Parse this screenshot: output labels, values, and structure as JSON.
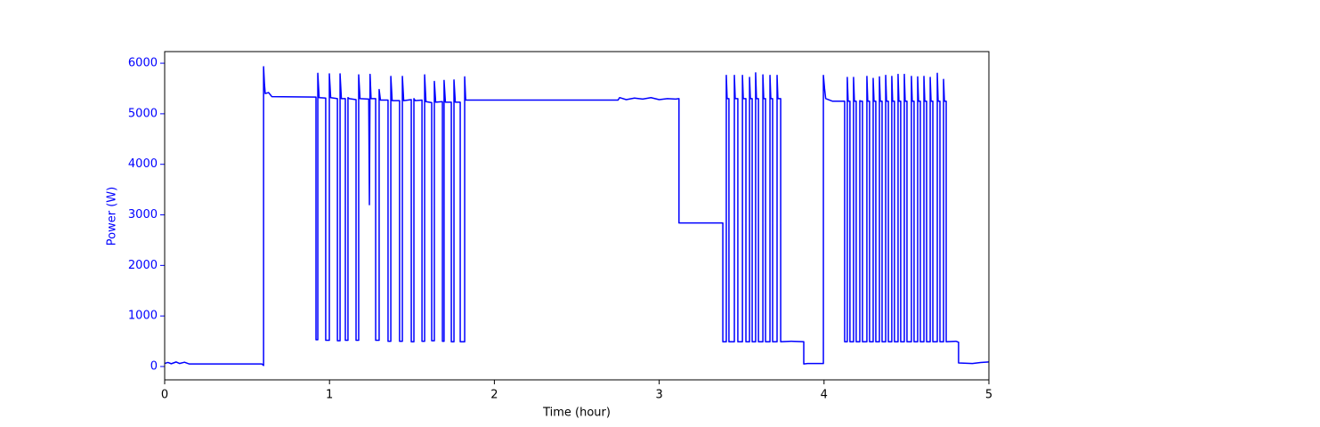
{
  "chart_data": {
    "type": "line",
    "xlabel": "Time (hour)",
    "ylabel": "Power (W)",
    "color": "#0000ff",
    "x": [
      0,
      0.02,
      0.04,
      0.07,
      0.09,
      0.12,
      0.15,
      0.59,
      0.6,
      0.6,
      0.605,
      0.61,
      0.63,
      0.65,
      0.918,
      0.918,
      0.929,
      0.929,
      0.937,
      0.977,
      0.977,
      0.999,
      0.999,
      1.007,
      1.048,
      1.048,
      1.064,
      1.064,
      1.072,
      1.096,
      1.096,
      1.112,
      1.112,
      1.12,
      1.161,
      1.161,
      1.177,
      1.177,
      1.185,
      1.238,
      1.242,
      1.246,
      1.252,
      1.28,
      1.28,
      1.301,
      1.301,
      1.309,
      1.355,
      1.355,
      1.372,
      1.372,
      1.38,
      1.425,
      1.425,
      1.442,
      1.442,
      1.45,
      1.496,
      1.496,
      1.512,
      1.512,
      1.52,
      1.561,
      1.561,
      1.577,
      1.577,
      1.585,
      1.62,
      1.62,
      1.636,
      1.636,
      1.644,
      1.685,
      1.685,
      1.695,
      1.695,
      1.703,
      1.739,
      1.739,
      1.755,
      1.755,
      1.763,
      1.793,
      1.793,
      1.82,
      1.82,
      1.826,
      2.75,
      2.76,
      2.8,
      2.85,
      2.9,
      2.95,
      3.0,
      3.05,
      3.1,
      3.12,
      3.12,
      3.386,
      3.386,
      3.407,
      3.407,
      3.412,
      3.423,
      3.423,
      3.456,
      3.456,
      3.461,
      3.477,
      3.477,
      3.505,
      3.505,
      3.51,
      3.526,
      3.526,
      3.548,
      3.548,
      3.553,
      3.564,
      3.564,
      3.585,
      3.585,
      3.59,
      3.602,
      3.602,
      3.629,
      3.629,
      3.634,
      3.645,
      3.645,
      3.672,
      3.672,
      3.677,
      3.688,
      3.688,
      3.715,
      3.715,
      3.72,
      3.737,
      3.737,
      3.8,
      3.877,
      3.877,
      3.9,
      3.996,
      3.996,
      4.003,
      4.01,
      4.05,
      4.125,
      4.125,
      4.141,
      4.141,
      4.146,
      4.157,
      4.157,
      4.179,
      4.179,
      4.184,
      4.195,
      4.195,
      4.217,
      4.217,
      4.222,
      4.233,
      4.233,
      4.26,
      4.26,
      4.265,
      4.276,
      4.276,
      4.298,
      4.298,
      4.303,
      4.314,
      4.314,
      4.336,
      4.336,
      4.341,
      4.352,
      4.352,
      4.374,
      4.374,
      4.379,
      4.39,
      4.39,
      4.411,
      4.411,
      4.416,
      4.427,
      4.427,
      4.449,
      4.449,
      4.454,
      4.465,
      4.465,
      4.487,
      4.487,
      4.492,
      4.503,
      4.503,
      4.53,
      4.53,
      4.535,
      4.546,
      4.546,
      4.568,
      4.568,
      4.573,
      4.584,
      4.584,
      4.606,
      4.606,
      4.611,
      4.622,
      4.622,
      4.644,
      4.644,
      4.649,
      4.66,
      4.66,
      4.687,
      4.687,
      4.692,
      4.703,
      4.703,
      4.725,
      4.725,
      4.73,
      4.741,
      4.741,
      4.8,
      4.816,
      4.816,
      4.9,
      4.95,
      5.0
    ],
    "values": [
      60,
      80,
      55,
      90,
      60,
      85,
      50,
      50,
      20,
      5930,
      5600,
      5400,
      5420,
      5340,
      5330,
      530,
      530,
      5800,
      5320,
      5310,
      520,
      520,
      5790,
      5320,
      5300,
      510,
      510,
      5790,
      5300,
      5300,
      520,
      520,
      5320,
      5300,
      5280,
      520,
      520,
      5770,
      5300,
      5290,
      3200,
      5780,
      5300,
      5300,
      520,
      520,
      5480,
      5270,
      5270,
      500,
      500,
      5740,
      5260,
      5260,
      500,
      500,
      5740,
      5260,
      5280,
      490,
      490,
      5300,
      5260,
      5270,
      500,
      500,
      5770,
      5240,
      5220,
      510,
      510,
      5640,
      5230,
      5240,
      500,
      500,
      5660,
      5230,
      5230,
      490,
      490,
      5670,
      5230,
      5230,
      490,
      490,
      5730,
      5270,
      5270,
      5320,
      5280,
      5310,
      5290,
      5320,
      5280,
      5300,
      5290,
      5300,
      2840,
      2840,
      490,
      490,
      5760,
      5300,
      5300,
      490,
      490,
      5760,
      5300,
      5300,
      490,
      490,
      5760,
      5300,
      5300,
      490,
      490,
      5720,
      5300,
      5300,
      490,
      490,
      5810,
      5300,
      5300,
      490,
      490,
      5770,
      5300,
      5300,
      490,
      490,
      5760,
      5300,
      5300,
      490,
      490,
      5760,
      5300,
      5300,
      490,
      500,
      490,
      50,
      60,
      60,
      5760,
      5500,
      5300,
      5250,
      5250,
      490,
      490,
      5720,
      5250,
      5250,
      490,
      490,
      5720,
      5250,
      5250,
      490,
      490,
      5260,
      5250,
      5250,
      490,
      490,
      5740,
      5250,
      5250,
      490,
      490,
      5700,
      5250,
      5250,
      490,
      490,
      5730,
      5250,
      5250,
      490,
      490,
      5760,
      5250,
      5250,
      490,
      490,
      5740,
      5250,
      5250,
      490,
      490,
      5780,
      5250,
      5250,
      490,
      490,
      5780,
      5250,
      5250,
      490,
      490,
      5740,
      5250,
      5250,
      490,
      490,
      5730,
      5250,
      5250,
      490,
      490,
      5740,
      5250,
      5250,
      490,
      490,
      5720,
      5250,
      5250,
      490,
      490,
      5800,
      5250,
      5250,
      490,
      490,
      5680,
      5250,
      5250,
      490,
      500,
      480,
      70,
      60,
      80,
      90
    ],
    "xlim": [
      0,
      5
    ],
    "ylim": [
      -264,
      6230
    ],
    "xticks": [
      0,
      1,
      2,
      3,
      4,
      5
    ],
    "yticks": [
      0,
      1000,
      2000,
      3000,
      4000,
      5000,
      6000
    ]
  }
}
